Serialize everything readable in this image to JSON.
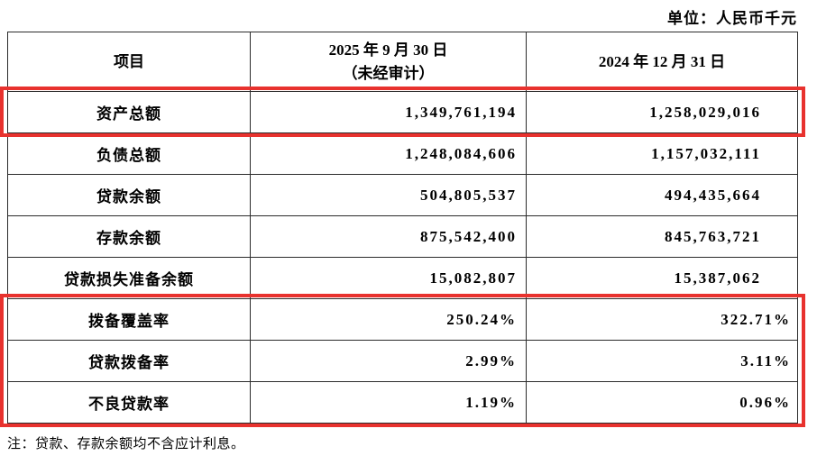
{
  "unit_label": "单位：人民币千元",
  "table": {
    "headers": {
      "item": "项目",
      "col2025_line1": "2025 年 9 月 30 日",
      "col2025_line2": "（未经审计）",
      "col2024": "2024 年 12 月 31 日"
    },
    "rows": [
      {
        "label": "资产总额",
        "v2025": "1,349,761,194",
        "v2024": "1,258,029,016"
      },
      {
        "label": "负债总额",
        "v2025": "1,248,084,606",
        "v2024": "1,157,032,111"
      },
      {
        "label": "贷款余额",
        "v2025": "504,805,537",
        "v2024": "494,435,664"
      },
      {
        "label": "存款余额",
        "v2025": "875,542,400",
        "v2024": "845,763,721"
      },
      {
        "label": "贷款损失准备余额",
        "v2025": "15,082,807",
        "v2024": "15,387,062"
      },
      {
        "label": "拨备覆盖率",
        "v2025": "250.24%",
        "v2024": "322.71%"
      },
      {
        "label": "贷款拨备率",
        "v2025": "2.99%",
        "v2024": "3.11%"
      },
      {
        "label": "不良贷款率",
        "v2025": "1.19%",
        "v2024": "0.96%"
      }
    ],
    "highlighted_rows": [
      "资产总额",
      "拨备覆盖率",
      "贷款拨备率",
      "不良贷款率"
    ]
  },
  "note": "注：贷款、存款余额均不含应计利息。",
  "colors": {
    "highlight_box": "#e8322e"
  }
}
